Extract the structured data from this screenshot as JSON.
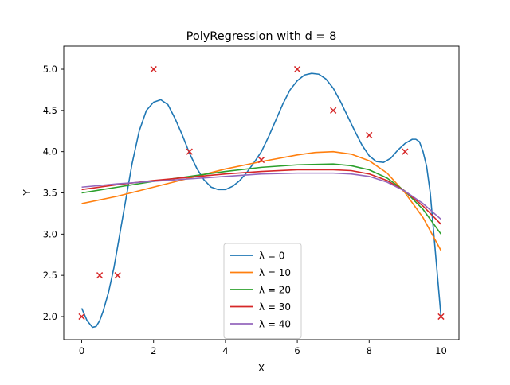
{
  "chart_data": {
    "type": "line",
    "title": "PolyRegression with d = 8",
    "xlabel": "X",
    "ylabel": "Y",
    "xlim": [
      -0.5,
      10.5
    ],
    "ylim": [
      1.72,
      5.28
    ],
    "xticks": [
      0,
      2,
      4,
      6,
      8,
      10
    ],
    "yticks": [
      2.0,
      2.5,
      3.0,
      3.5,
      4.0,
      4.5,
      5.0
    ],
    "xtick_labels": [
      "0",
      "2",
      "4",
      "6",
      "8",
      "10"
    ],
    "ytick_labels": [
      "2.0",
      "2.5",
      "3.0",
      "3.5",
      "4.0",
      "4.5",
      "5.0"
    ],
    "grid": false,
    "legend_position": "bottom-center",
    "points": {
      "marker": "x",
      "color": "#d62728",
      "x": [
        0,
        0.5,
        1,
        2,
        3,
        5,
        6,
        7,
        8,
        9,
        10
      ],
      "y": [
        2.0,
        2.5,
        2.5,
        5.0,
        4.0,
        3.9,
        5.0,
        4.5,
        4.2,
        4.0,
        2.0
      ]
    },
    "series": [
      {
        "legend": "λ = 0",
        "color": "#1f77b4",
        "x": [
          0,
          0.15,
          0.3,
          0.4,
          0.5,
          0.6,
          0.75,
          0.9,
          1.0,
          1.2,
          1.4,
          1.6,
          1.8,
          2.0,
          2.2,
          2.4,
          2.6,
          2.8,
          3.0,
          3.2,
          3.4,
          3.6,
          3.8,
          4.0,
          4.2,
          4.4,
          4.6,
          4.8,
          5.0,
          5.2,
          5.4,
          5.6,
          5.8,
          6.0,
          6.2,
          6.4,
          6.6,
          6.8,
          7.0,
          7.2,
          7.4,
          7.6,
          7.8,
          8.0,
          8.2,
          8.4,
          8.6,
          8.8,
          9.0,
          9.2,
          9.3,
          9.4,
          9.5,
          9.6,
          9.7,
          9.8,
          9.9,
          10.0
        ],
        "y": [
          2.1,
          1.95,
          1.87,
          1.88,
          1.95,
          2.07,
          2.3,
          2.6,
          2.85,
          3.35,
          3.85,
          4.25,
          4.5,
          4.6,
          4.63,
          4.57,
          4.4,
          4.2,
          3.98,
          3.8,
          3.66,
          3.57,
          3.54,
          3.54,
          3.58,
          3.65,
          3.75,
          3.87,
          4.0,
          4.18,
          4.38,
          4.58,
          4.75,
          4.86,
          4.93,
          4.95,
          4.94,
          4.88,
          4.77,
          4.61,
          4.43,
          4.25,
          4.08,
          3.95,
          3.88,
          3.87,
          3.92,
          4.02,
          4.1,
          4.15,
          4.15,
          4.12,
          4.0,
          3.82,
          3.5,
          3.0,
          2.5,
          2.0
        ]
      },
      {
        "legend": "λ = 10",
        "color": "#ff7f0e",
        "x": [
          0,
          1,
          2,
          3,
          4,
          5,
          6,
          6.5,
          7,
          7.5,
          8,
          8.5,
          9,
          9.5,
          10
        ],
        "y": [
          3.37,
          3.46,
          3.57,
          3.68,
          3.79,
          3.88,
          3.96,
          3.99,
          4.0,
          3.97,
          3.89,
          3.74,
          3.5,
          3.2,
          2.8
        ]
      },
      {
        "legend": "λ = 20",
        "color": "#2ca02c",
        "x": [
          0,
          1,
          2,
          3,
          4,
          5,
          6,
          7,
          7.5,
          8,
          8.5,
          9,
          9.5,
          10
        ],
        "y": [
          3.5,
          3.57,
          3.64,
          3.7,
          3.76,
          3.81,
          3.84,
          3.85,
          3.83,
          3.78,
          3.68,
          3.52,
          3.3,
          3.0
        ]
      },
      {
        "legend": "λ = 30",
        "color": "#d62728",
        "x": [
          0,
          1,
          2,
          3,
          4,
          5,
          6,
          7,
          7.5,
          8,
          8.5,
          9,
          9.5,
          10
        ],
        "y": [
          3.54,
          3.6,
          3.65,
          3.69,
          3.73,
          3.76,
          3.78,
          3.78,
          3.77,
          3.73,
          3.65,
          3.52,
          3.34,
          3.12
        ]
      },
      {
        "legend": "λ = 40",
        "color": "#9467bd",
        "x": [
          0,
          1,
          2,
          3,
          4,
          5,
          6,
          7,
          7.5,
          8,
          8.5,
          9,
          9.5,
          10
        ],
        "y": [
          3.57,
          3.61,
          3.64,
          3.67,
          3.7,
          3.73,
          3.74,
          3.74,
          3.73,
          3.7,
          3.63,
          3.52,
          3.37,
          3.18
        ]
      }
    ]
  }
}
